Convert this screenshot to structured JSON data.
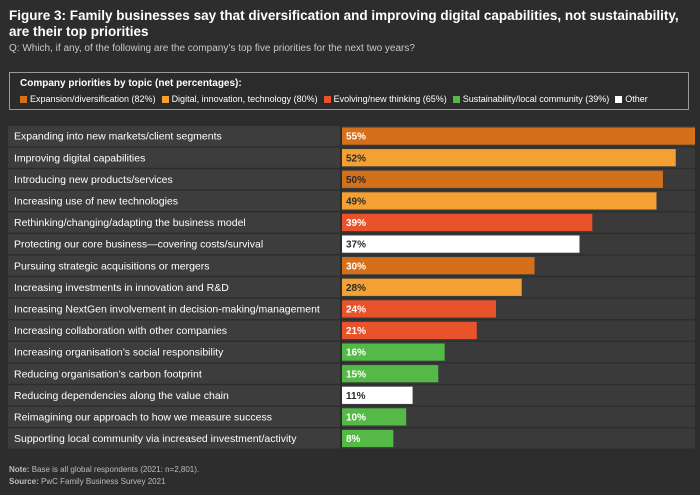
{
  "title": "Figure 3: Family businesses say that diversification and improving digital capabilities, not sustainability, are their top priorities",
  "subtitle": "Q: Which, if any, of the following are the company’s top five priorities for the next two years?",
  "legend": {
    "title": "Company priorities by topic (net percentages):",
    "items": [
      {
        "label": "Expansion/diversification (82%)",
        "color": "#d4701a"
      },
      {
        "label": "Digital, innovation, technology (80%)",
        "color": "#f5a033"
      },
      {
        "label": "Evolving/new thinking (65%)",
        "color": "#e8532c"
      },
      {
        "label": "Sustainability/local community (39%)",
        "color": "#55b947"
      },
      {
        "label": "Other",
        "color": "#ffffff"
      }
    ]
  },
  "chart_data": {
    "type": "bar",
    "orientation": "horizontal",
    "title": "Company priorities by topic (net percentages)",
    "xlim": [
      0,
      55
    ],
    "value_suffix": "%",
    "categories": [
      "Expanding into new markets/client segments",
      "Improving digital capabilities",
      "Introducing new products/services",
      "Increasing use of new technologies",
      "Rethinking/changing/adapting the business model",
      "Protecting our core business—covering costs/survival",
      "Pursuing strategic acquisitions or mergers",
      "Increasing investments in innovation and R&D",
      "Increasing NextGen involvement in decision-making/management",
      "Increasing collaboration with other companies",
      "Increasing organisation’s social responsibility",
      "Reducing organisation’s carbon footprint",
      "Reducing dependencies along the value chain",
      "Reimagining our approach to how we measure success",
      "Supporting local community via increased investment/activity"
    ],
    "values": [
      55,
      52,
      50,
      49,
      39,
      37,
      30,
      28,
      24,
      21,
      16,
      15,
      11,
      10,
      8
    ],
    "colors": [
      "#d4701a",
      "#f5a033",
      "#d4701a",
      "#f5a033",
      "#e8532c",
      "#ffffff",
      "#d4701a",
      "#f5a033",
      "#e8532c",
      "#e8532c",
      "#55b947",
      "#55b947",
      "#ffffff",
      "#55b947",
      "#55b947"
    ],
    "label_colors": [
      "#ffffff",
      "#2b2b2b",
      "#2b2b2b",
      "#2b2b2b",
      "#ffffff",
      "#2b2b2b",
      "#ffffff",
      "#2b2b2b",
      "#ffffff",
      "#ffffff",
      "#ffffff",
      "#ffffff",
      "#2b2b2b",
      "#ffffff",
      "#ffffff"
    ]
  },
  "footnotes": {
    "note_label": "Note:",
    "note": "Base is all global respondents (2021: n=2,801).",
    "source_label": "Source:",
    "source": "PwC Family Business Survey 2021"
  },
  "colors": {
    "background": "#2d2d2d",
    "row_label_bg": "#3d3d3d",
    "track_bg": "#3a3a3a"
  }
}
